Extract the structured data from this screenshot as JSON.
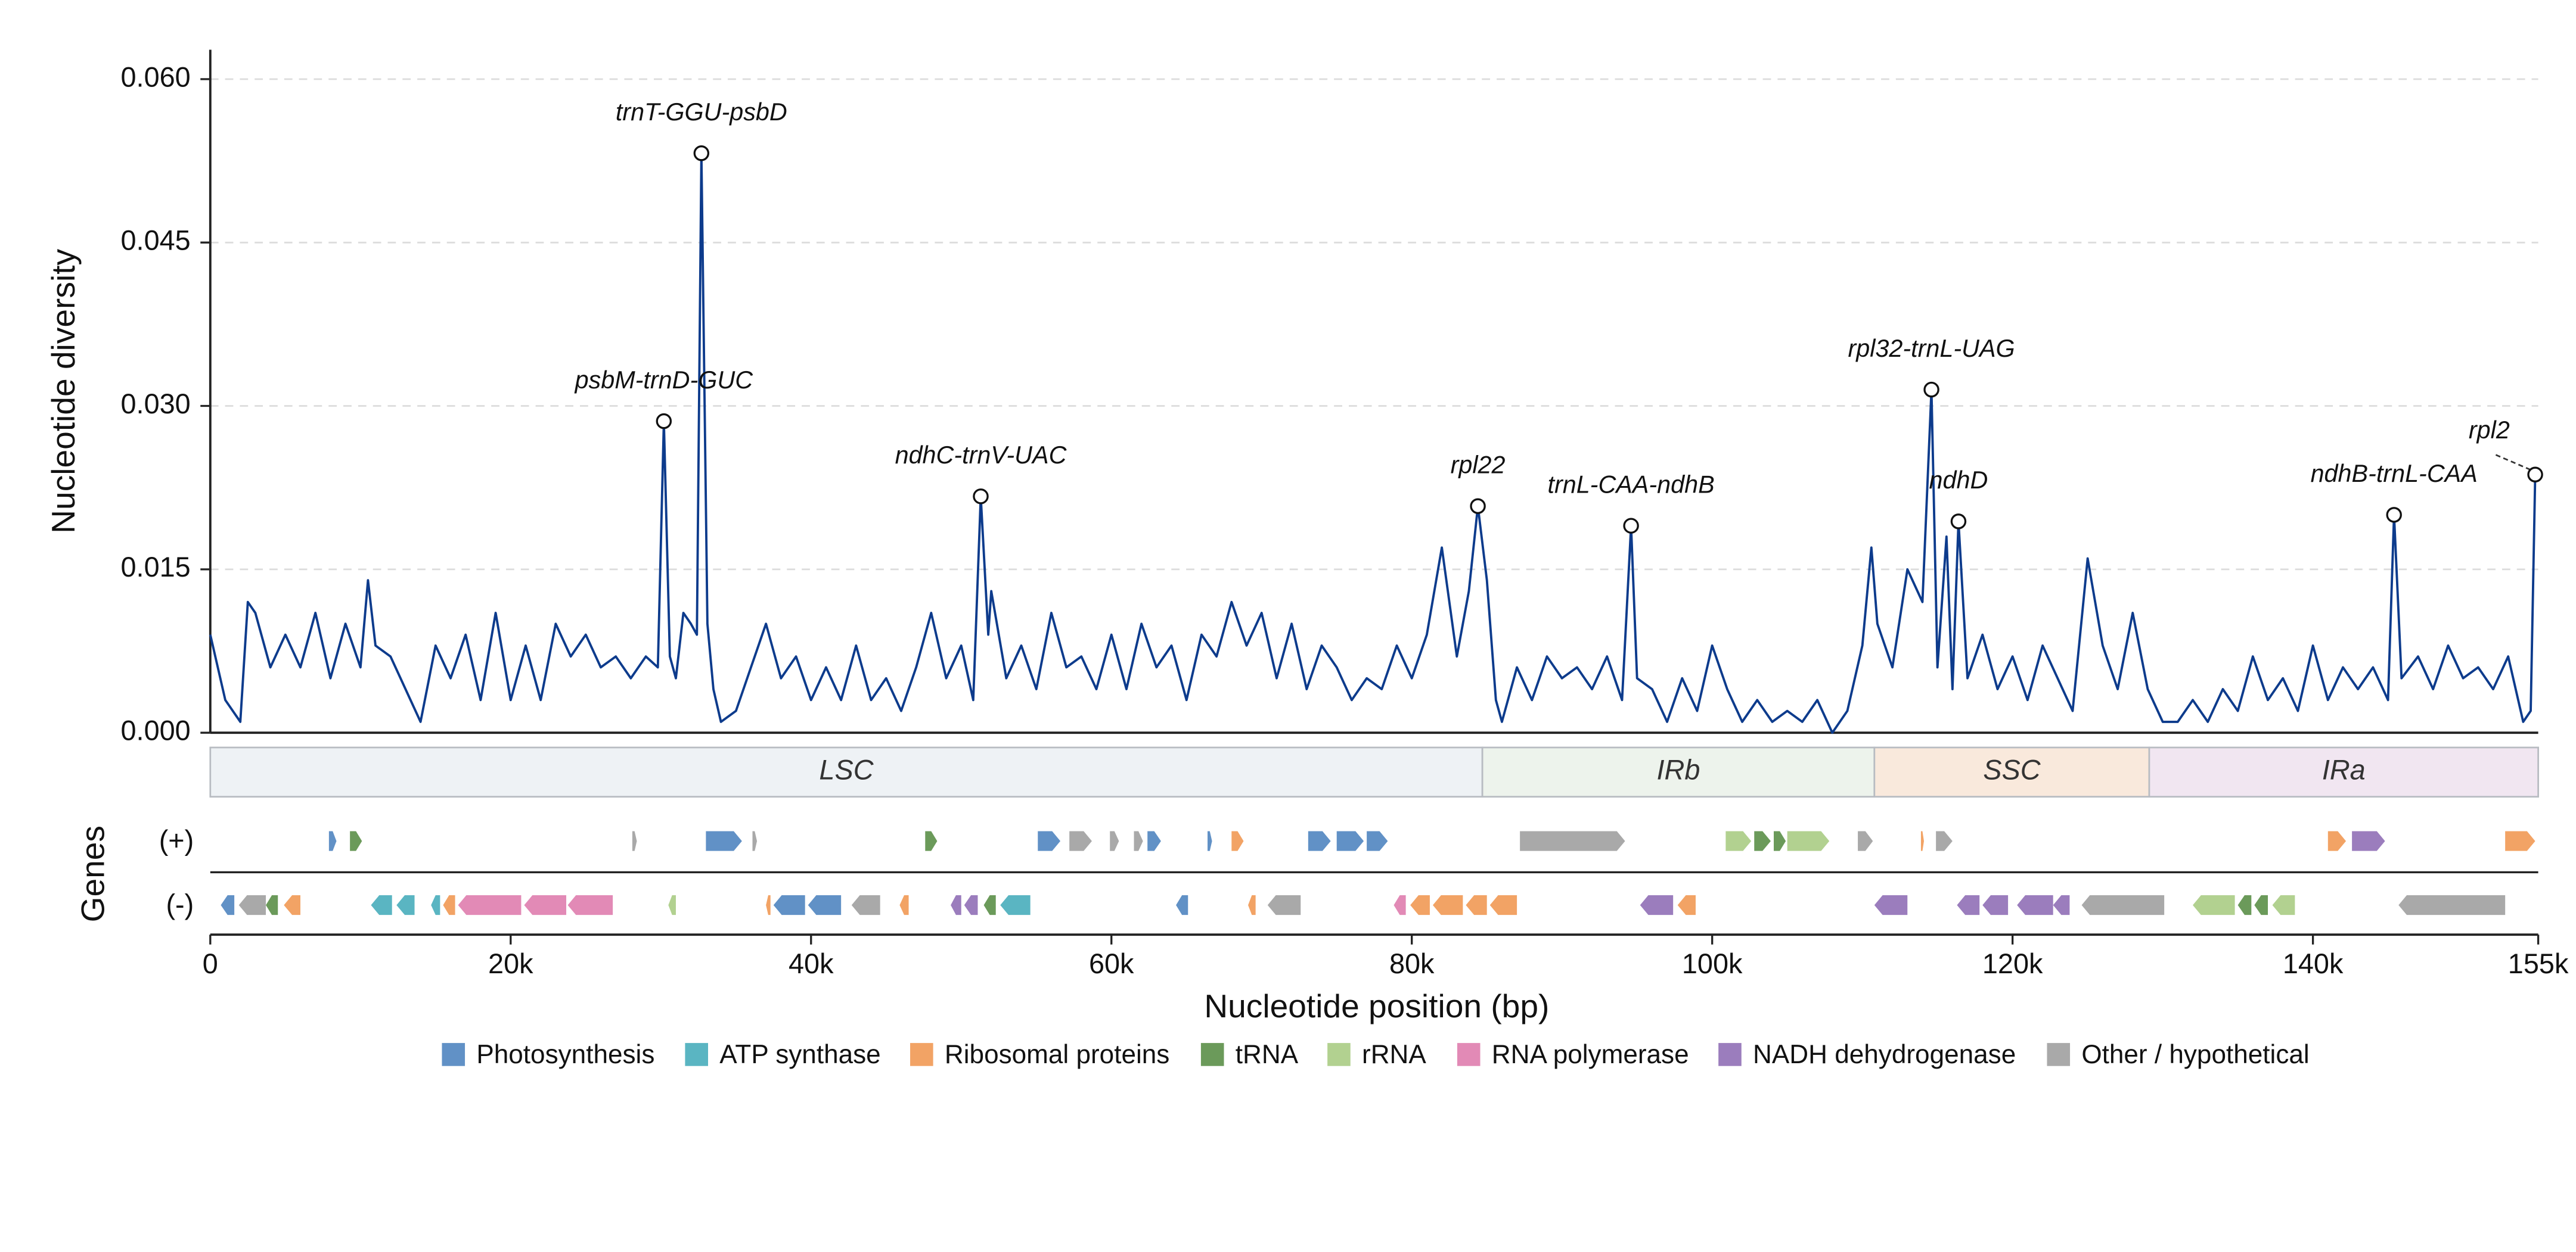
{
  "chart_data": {
    "type": "line",
    "ylabel": "Nucleotide diversity",
    "xlabel": "Nucleotide position (bp)",
    "xlim": [
      0,
      155000
    ],
    "ylim": [
      0,
      0.0627
    ],
    "yticks": [
      {
        "value": 0,
        "label": "0.000"
      },
      {
        "value": 0.015,
        "label": "0.015"
      },
      {
        "value": 0.03,
        "label": "0.030"
      },
      {
        "value": 0.045,
        "label": "0.045"
      },
      {
        "value": 0.06,
        "label": "0.060"
      }
    ],
    "xticks": [
      0,
      {
        "value": 20000,
        "label": "20k"
      },
      {
        "value": 40000,
        "label": "40k"
      },
      {
        "value": 60000,
        "label": "60k"
      },
      {
        "value": 80000,
        "label": "80k"
      },
      {
        "value": 100000,
        "label": "100k"
      },
      {
        "value": 120000,
        "label": "120k"
      },
      {
        "value": 140000,
        "label": "140k"
      },
      {
        "value": 155000,
        "label": "155k"
      }
    ],
    "grid": true,
    "series": [
      {
        "name": "Nucleotide diversity",
        "color": "#0d3b8c",
        "x": [
          0,
          1000,
          2000,
          2500,
          3000,
          4000,
          5000,
          6000,
          7000,
          8000,
          9000,
          10000,
          10500,
          11000,
          12000,
          13000,
          14000,
          15000,
          16000,
          17000,
          18000,
          19000,
          20000,
          21000,
          22000,
          23000,
          24000,
          25000,
          26000,
          27000,
          28000,
          29000,
          29800,
          30200,
          30600,
          31000,
          31500,
          32000,
          32400,
          32700,
          33100,
          33500,
          34000,
          35000,
          36000,
          37000,
          38000,
          39000,
          40000,
          41000,
          42000,
          43000,
          44000,
          45000,
          46000,
          47000,
          48000,
          49000,
          50000,
          50800,
          51300,
          51800,
          52000,
          53000,
          54000,
          55000,
          56000,
          57000,
          58000,
          59000,
          60000,
          61000,
          62000,
          63000,
          64000,
          65000,
          66000,
          67000,
          68000,
          69000,
          70000,
          71000,
          72000,
          73000,
          74000,
          75000,
          76000,
          77000,
          78000,
          79000,
          80000,
          81000,
          82000,
          83000,
          83800,
          84400,
          85000,
          85600,
          86000,
          87000,
          88000,
          89000,
          90000,
          91000,
          92000,
          93000,
          94000,
          94600,
          95000,
          96000,
          97000,
          98000,
          99000,
          100000,
          101000,
          102000,
          103000,
          104000,
          105000,
          106000,
          107000,
          108000,
          109000,
          110000,
          110600,
          111000,
          112000,
          113000,
          114000,
          114600,
          115000,
          115600,
          116000,
          116400,
          117000,
          118000,
          119000,
          120000,
          121000,
          122000,
          123000,
          124000,
          125000,
          126000,
          127000,
          128000,
          129000,
          130000,
          131000,
          132000,
          133000,
          134000,
          135000,
          136000,
          137000,
          138000,
          139000,
          140000,
          141000,
          142000,
          143000,
          144000,
          145000,
          145400,
          145900,
          147000,
          148000,
          149000,
          150000,
          151000,
          152000,
          153000,
          154000,
          154500,
          154800
        ],
        "values": [
          0.009,
          0.003,
          0.001,
          0.012,
          0.011,
          0.006,
          0.009,
          0.006,
          0.011,
          0.005,
          0.01,
          0.006,
          0.014,
          0.008,
          0.007,
          0.004,
          0.001,
          0.008,
          0.005,
          0.009,
          0.003,
          0.011,
          0.003,
          0.008,
          0.003,
          0.01,
          0.007,
          0.009,
          0.006,
          0.007,
          0.005,
          0.007,
          0.006,
          0.0286,
          0.007,
          0.005,
          0.011,
          0.01,
          0.009,
          0.0532,
          0.01,
          0.004,
          0.001,
          0.002,
          0.006,
          0.01,
          0.005,
          0.007,
          0.003,
          0.006,
          0.003,
          0.008,
          0.003,
          0.005,
          0.002,
          0.006,
          0.011,
          0.005,
          0.008,
          0.003,
          0.0217,
          0.009,
          0.013,
          0.005,
          0.008,
          0.004,
          0.011,
          0.006,
          0.007,
          0.004,
          0.009,
          0.004,
          0.01,
          0.006,
          0.008,
          0.003,
          0.009,
          0.007,
          0.012,
          0.008,
          0.011,
          0.005,
          0.01,
          0.004,
          0.008,
          0.006,
          0.003,
          0.005,
          0.004,
          0.008,
          0.005,
          0.009,
          0.017,
          0.007,
          0.013,
          0.0208,
          0.014,
          0.003,
          0.001,
          0.006,
          0.003,
          0.007,
          0.005,
          0.006,
          0.004,
          0.007,
          0.003,
          0.019,
          0.005,
          0.004,
          0.001,
          0.005,
          0.002,
          0.008,
          0.004,
          0.001,
          0.003,
          0.001,
          0.002,
          0.001,
          0.003,
          0.0,
          0.002,
          0.008,
          0.017,
          0.01,
          0.006,
          0.015,
          0.012,
          0.0315,
          0.006,
          0.018,
          0.004,
          0.0194,
          0.005,
          0.009,
          0.004,
          0.007,
          0.003,
          0.008,
          0.005,
          0.002,
          0.016,
          0.008,
          0.004,
          0.011,
          0.004,
          0.001,
          0.001,
          0.003,
          0.001,
          0.004,
          0.002,
          0.007,
          0.003,
          0.005,
          0.002,
          0.008,
          0.003,
          0.006,
          0.004,
          0.006,
          0.003,
          0.02,
          0.005,
          0.007,
          0.004,
          0.008,
          0.005,
          0.006,
          0.004,
          0.007,
          0.001,
          0.002,
          0.0237
        ]
      }
    ],
    "annotations": [
      {
        "label": "psbM-trnD-GUC",
        "x": 30200,
        "y": 0.0286
      },
      {
        "label": "trnT-GGU-psbD",
        "x": 32700,
        "y": 0.0532
      },
      {
        "label": "ndhC-trnV-UAC",
        "x": 51300,
        "y": 0.0217
      },
      {
        "label": "rpl22",
        "x": 84400,
        "y": 0.0208
      },
      {
        "label": "trnL-CAA-ndhB",
        "x": 94600,
        "y": 0.019
      },
      {
        "label": "rpl32-trnL-UAG",
        "x": 114600,
        "y": 0.0315
      },
      {
        "label": "ndhD",
        "x": 116400,
        "y": 0.0194
      },
      {
        "label": "ndhB-trnL-CAA",
        "x": 145400,
        "y": 0.02
      },
      {
        "label": "rpl2",
        "x": 154800,
        "y": 0.0237
      }
    ],
    "regions": [
      {
        "name": "LSC",
        "start": 0,
        "end": 84700,
        "color": "#eef2f5"
      },
      {
        "name": "IRb",
        "start": 84700,
        "end": 110800,
        "color": "#edf3ec"
      },
      {
        "name": "SSC",
        "start": 110800,
        "end": 129100,
        "color": "#f9e9dc"
      },
      {
        "name": "IRa",
        "start": 129100,
        "end": 155000,
        "color": "#f1e6f1"
      }
    ],
    "gene_track": {
      "label": "Genes",
      "plus_label": "(+)",
      "minus_label": "(-)"
    },
    "gene_categories": [
      {
        "name": "Photosynthesis",
        "color": "#6191c6"
      },
      {
        "name": "ATP synthase",
        "color": "#5ab5c2"
      },
      {
        "name": "Ribosomal proteins",
        "color": "#f2a365"
      },
      {
        "name": "tRNA",
        "color": "#6b9a5a"
      },
      {
        "name": "rRNA",
        "color": "#b2d190"
      },
      {
        "name": "RNA polymerase",
        "color": "#e28ab6"
      },
      {
        "name": "NADH dehydrogenase",
        "color": "#9b7dbd"
      },
      {
        "name": "Other / hypothetical",
        "color": "#a9a9a9"
      }
    ],
    "genes_plus": [
      [
        7900,
        8400,
        0
      ],
      [
        9300,
        10100,
        3
      ],
      [
        28100,
        28400,
        7
      ],
      [
        33000,
        35400,
        0
      ],
      [
        36100,
        36400,
        7
      ],
      [
        47600,
        48400,
        3
      ],
      [
        55100,
        56600,
        0
      ],
      [
        57200,
        58700,
        7
      ],
      [
        59900,
        60500,
        7
      ],
      [
        61500,
        62100,
        7
      ],
      [
        62400,
        63300,
        0
      ],
      [
        66400,
        66700,
        0
      ],
      [
        68000,
        68800,
        2
      ],
      [
        73100,
        74600,
        0
      ],
      [
        75000,
        76800,
        0
      ],
      [
        77000,
        78400,
        0
      ],
      [
        87200,
        94200,
        7
      ],
      [
        100900,
        102600,
        4
      ],
      [
        102800,
        103900,
        3
      ],
      [
        104100,
        104900,
        3
      ],
      [
        105000,
        107800,
        4
      ],
      [
        109700,
        110700,
        7
      ],
      [
        113900,
        114100,
        2
      ],
      [
        114900,
        116000,
        7
      ],
      [
        141000,
        142200,
        2
      ],
      [
        142600,
        144800,
        6
      ],
      [
        152800,
        154800,
        2
      ]
    ],
    "genes_minus": [
      [
        700,
        1600,
        0
      ],
      [
        1900,
        3700,
        7
      ],
      [
        3700,
        4500,
        3
      ],
      [
        4900,
        6000,
        2
      ],
      [
        10700,
        12100,
        1
      ],
      [
        12400,
        13600,
        1
      ],
      [
        14700,
        15300,
        1
      ],
      [
        15500,
        16300,
        2
      ],
      [
        16500,
        20700,
        5
      ],
      [
        20900,
        23700,
        5
      ],
      [
        23800,
        26800,
        5
      ],
      [
        30500,
        31000,
        4
      ],
      [
        37000,
        37300,
        2
      ],
      [
        37500,
        39600,
        0
      ],
      [
        39800,
        42000,
        0
      ],
      [
        42700,
        44600,
        7
      ],
      [
        45900,
        46500,
        2
      ],
      [
        49300,
        50000,
        6
      ],
      [
        50200,
        51100,
        6
      ],
      [
        51500,
        52300,
        3
      ],
      [
        52600,
        54600,
        1
      ],
      [
        64300,
        65100,
        0
      ],
      [
        69100,
        69600,
        2
      ],
      [
        70400,
        72600,
        7
      ],
      [
        78800,
        79600,
        5
      ],
      [
        79900,
        81200,
        2
      ],
      [
        81400,
        83400,
        2
      ],
      [
        83600,
        85000,
        2
      ],
      [
        85200,
        87000,
        2
      ],
      [
        95200,
        97400,
        6
      ],
      [
        97700,
        98900,
        2
      ],
      [
        110800,
        113000,
        6
      ],
      [
        116300,
        117800,
        6
      ],
      [
        118000,
        119700,
        6
      ],
      [
        120300,
        122700,
        6
      ],
      [
        122700,
        123800,
        6
      ],
      [
        124600,
        130100,
        7
      ],
      [
        132000,
        134800,
        4
      ],
      [
        135000,
        135900,
        3
      ],
      [
        136100,
        137000,
        3
      ],
      [
        137300,
        138800,
        4
      ],
      [
        145700,
        152800,
        7
      ]
    ]
  }
}
